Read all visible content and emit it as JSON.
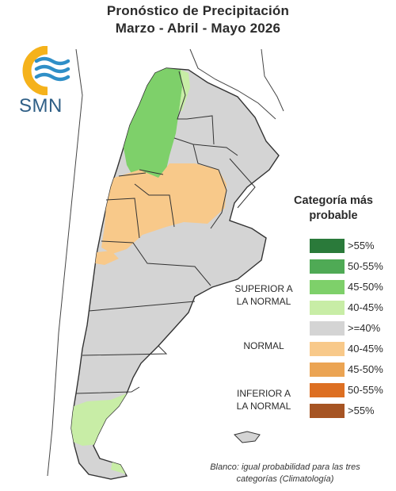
{
  "title": {
    "line1": "Pronóstico de Precipitación",
    "line2": "Marzo - Abril - Mayo 2026"
  },
  "logo": {
    "text": "SMN",
    "icon": "smn-sun-waves-logo",
    "colors": {
      "sun": "#f5b21b",
      "waves": "#2f8fc7",
      "text": "#2f5f86"
    }
  },
  "legend": {
    "title_line1": "Categoría más",
    "title_line2": "probable",
    "items": [
      {
        "label": ">55%",
        "color": "#2a7a3a",
        "group": "superior"
      },
      {
        "label": "50-55%",
        "color": "#4faa55",
        "group": "superior"
      },
      {
        "label": "45-50%",
        "color": "#7ed06a",
        "group": "superior"
      },
      {
        "label": "40-45%",
        "color": "#c8eda6",
        "group": "superior"
      },
      {
        "label": ">=40%",
        "color": "#d4d4d4",
        "group": "normal"
      },
      {
        "label": "40-45%",
        "color": "#f8c98a",
        "group": "inferior"
      },
      {
        "label": "45-50%",
        "color": "#eba453",
        "group": "inferior"
      },
      {
        "label": "50-55%",
        "color": "#dd6f22",
        "group": "inferior"
      },
      {
        "label": ">55%",
        "color": "#a65423",
        "group": "inferior"
      }
    ],
    "groups": {
      "superior_line1": "SUPERIOR A",
      "superior_line2": "LA NORMAL",
      "normal": "NORMAL",
      "inferior_line1": "INFERIOR A",
      "inferior_line2": "LA NORMAL"
    }
  },
  "note": {
    "line1": "Blanco: igual probabilidad para las tres",
    "line2": "categorías (Climatología)"
  },
  "map": {
    "region": "Argentina",
    "categories_shown": {
      "north_west": "45-50% superior",
      "central": "40-45% inferior",
      "south_patagonia": "40-45% superior",
      "rest": "normal"
    },
    "colors": {
      "border": "#333333",
      "normal": "#d4d4d4",
      "superior_light": "#c8eda6",
      "superior_mid": "#7ed06a",
      "inferior_light": "#f8c98a"
    }
  }
}
